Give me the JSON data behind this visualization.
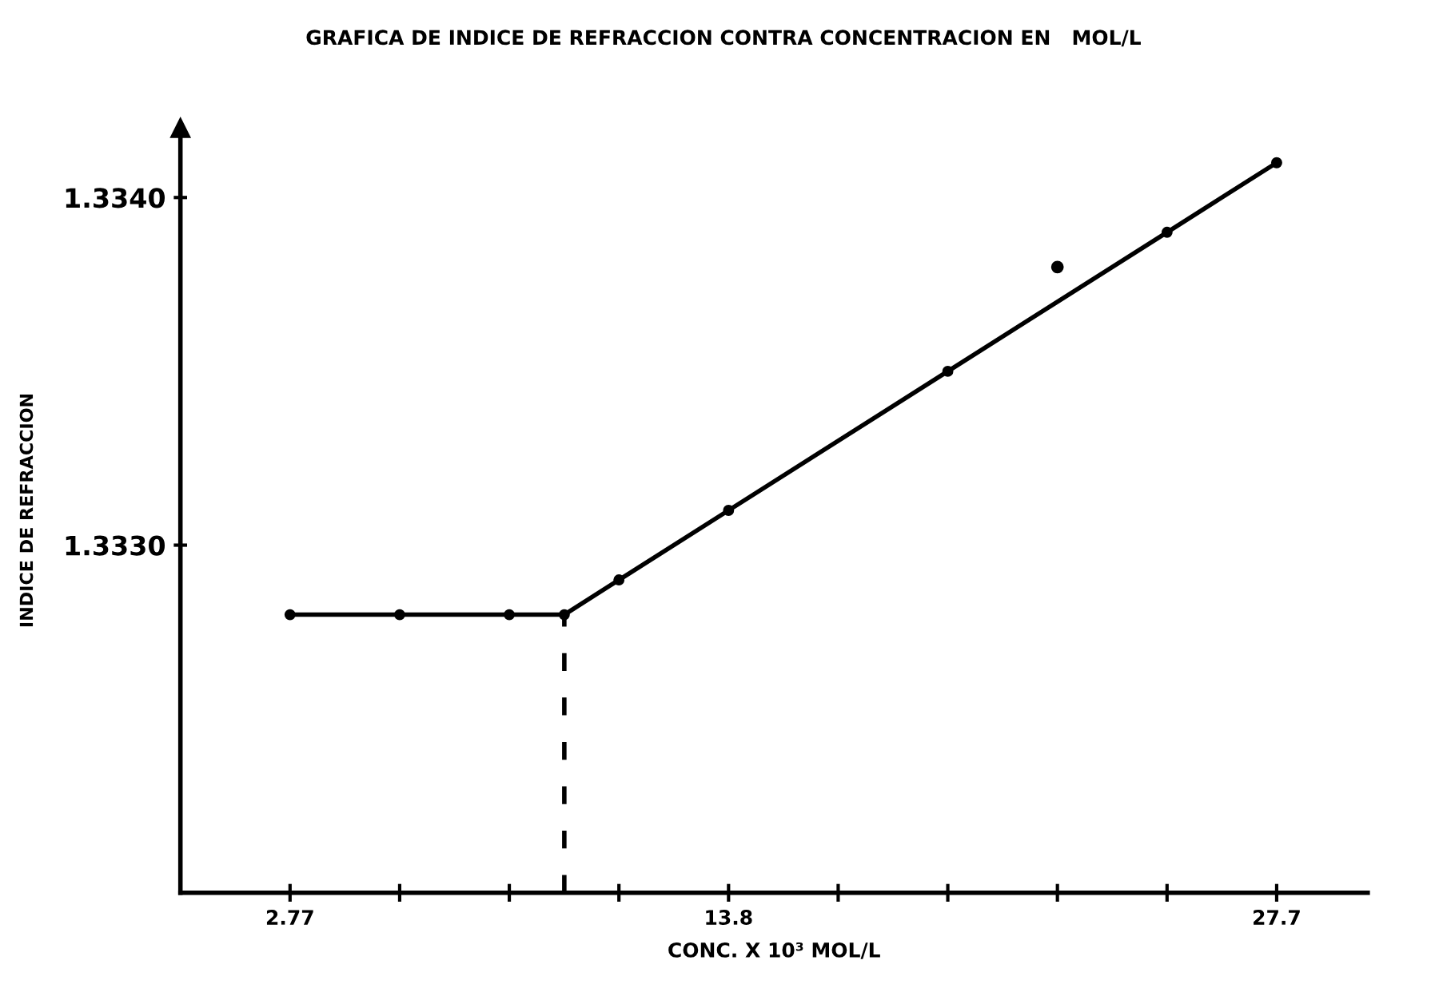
{
  "chart_data": {
    "type": "line",
    "title": "GRAFICA DE INDICE DE REFRACCION CONTRA CONCENTRACION EN   MOL/L",
    "xlabel": "CONC. X 10³ MOL/L",
    "ylabel": "INDICE DE REFRACCION",
    "series": [
      {
        "color": "#000000",
        "marker": "circle",
        "line_style": "solid",
        "x": [
          2.77,
          5.54,
          8.31,
          9.7,
          11.08,
          13.85,
          19.39,
          24.93,
          27.7
        ],
        "values": [
          1.3328,
          1.3328,
          1.3328,
          1.3328,
          1.3329,
          1.3331,
          1.3335,
          1.3339,
          1.3341
        ]
      },
      {
        "type": "scatter",
        "color": "#000000",
        "marker": "circle",
        "x": [
          22.16
        ],
        "values": [
          1.3338
        ]
      },
      {
        "type": "line",
        "color": "#000000",
        "marker": "none",
        "line_style": "dashed",
        "x": [
          9.7,
          9.7
        ],
        "values": [
          1.332,
          1.3328
        ]
      }
    ],
    "xlim": [
      0,
      30
    ],
    "ylim": [
      1.332,
      1.3342
    ],
    "xticks": [
      2.77,
      {
        "value": 5.54,
        "label": null
      },
      {
        "value": 8.31,
        "label": null
      },
      {
        "value": 11.08,
        "label": null
      },
      {
        "value": 13.85,
        "label": "13.8"
      },
      {
        "value": 16.62,
        "label": null
      },
      {
        "value": 19.39,
        "label": null
      },
      {
        "value": 22.16,
        "label": null
      },
      {
        "value": 24.93,
        "label": null
      },
      27.7
    ],
    "yticks": [
      {
        "value": 1.333,
        "label": "1.3330"
      },
      {
        "value": 1.334,
        "label": "1.3340"
      }
    ],
    "grid": false,
    "legend": false
  }
}
